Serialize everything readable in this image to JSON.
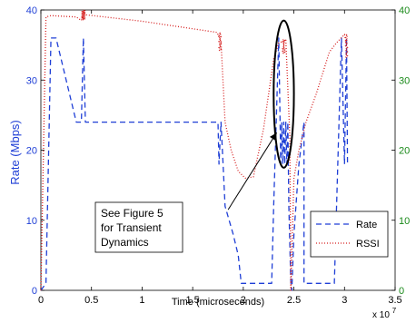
{
  "chart_data": {
    "type": "line",
    "xlabel": "Time (microseconds)",
    "x_multiplier": "x 10",
    "x_exponent": "7",
    "ylabel_left": "Rate (Mbps)",
    "xlim": [
      0,
      3.5
    ],
    "ylim_left": [
      0,
      40
    ],
    "ylim_right": [
      0,
      40
    ],
    "x_ticks": [
      "0",
      "0.5",
      "1",
      "1.5",
      "2",
      "2.5",
      "3",
      "3.5"
    ],
    "y_ticks_left": [
      "0",
      "10",
      "20",
      "30",
      "40"
    ],
    "y_ticks_right": [
      "0",
      "10",
      "20",
      "30",
      "40"
    ],
    "grid": false,
    "legend_position": "lower-right",
    "colors": {
      "rate": "#1f3fd6",
      "rssi": "#d62020",
      "left_axis": "#1f3fd6",
      "right_axis": "#1a8a1a"
    },
    "series": [
      {
        "name": "Rate",
        "axis": "left",
        "style": "dashed",
        "points": [
          [
            0.0,
            0
          ],
          [
            0.05,
            1
          ],
          [
            0.1,
            36
          ],
          [
            0.15,
            36
          ],
          [
            0.35,
            24
          ],
          [
            0.4,
            24
          ],
          [
            0.42,
            36
          ],
          [
            0.44,
            24
          ],
          [
            1.75,
            24
          ],
          [
            1.76,
            18
          ],
          [
            1.78,
            24
          ],
          [
            1.8,
            18
          ],
          [
            1.82,
            12
          ],
          [
            1.9,
            8
          ],
          [
            1.95,
            5
          ],
          [
            1.98,
            1
          ],
          [
            2.28,
            1
          ],
          [
            2.3,
            12
          ],
          [
            2.35,
            36
          ],
          [
            2.37,
            18
          ],
          [
            2.38,
            24
          ],
          [
            2.39,
            18
          ],
          [
            2.4,
            24
          ],
          [
            2.41,
            18
          ],
          [
            2.42,
            24
          ],
          [
            2.43,
            18
          ],
          [
            2.44,
            24
          ],
          [
            2.45,
            12
          ],
          [
            2.47,
            1
          ],
          [
            2.48,
            0
          ],
          [
            2.5,
            8
          ],
          [
            2.55,
            18
          ],
          [
            2.6,
            24
          ],
          [
            2.6,
            1
          ],
          [
            2.9,
            1
          ],
          [
            2.97,
            36
          ],
          [
            3.0,
            18
          ],
          [
            3.02,
            36
          ],
          [
            3.03,
            18
          ]
        ]
      },
      {
        "name": "RSSI",
        "axis": "left",
        "style": "dotted",
        "points": [
          [
            0.0,
            0
          ],
          [
            0.05,
            39
          ],
          [
            0.1,
            39.2
          ],
          [
            0.35,
            39
          ],
          [
            0.4,
            38.5
          ],
          [
            0.42,
            39.8
          ],
          [
            0.45,
            39.3
          ],
          [
            1.0,
            38.4
          ],
          [
            1.74,
            36.8
          ],
          [
            1.78,
            35.5
          ],
          [
            1.82,
            24
          ],
          [
            1.88,
            20
          ],
          [
            1.95,
            17
          ],
          [
            2.02,
            16
          ],
          [
            2.1,
            16.2
          ],
          [
            2.2,
            23
          ],
          [
            2.3,
            33
          ],
          [
            2.35,
            35.3
          ],
          [
            2.42,
            35.7
          ],
          [
            2.46,
            22
          ],
          [
            2.47,
            0
          ],
          [
            2.5,
            16
          ],
          [
            2.55,
            20
          ],
          [
            2.62,
            24
          ],
          [
            2.72,
            28
          ],
          [
            2.85,
            34
          ],
          [
            2.92,
            35.3
          ],
          [
            3.0,
            36.5
          ],
          [
            3.02,
            35
          ]
        ],
        "jitter_clusters": [
          {
            "x": 0.42,
            "y_min": 38.6,
            "y_max": 40
          },
          {
            "x": 1.77,
            "y_min": 34.2,
            "y_max": 36.8
          },
          {
            "x": 2.4,
            "y_min": 33.8,
            "y_max": 35.8
          },
          {
            "x": 3.02,
            "y_min": 33.2,
            "y_max": 36.6
          }
        ]
      }
    ],
    "annotation": {
      "lines": [
        "See Figure 5",
        "for Transient",
        "Dynamics"
      ],
      "highlight_center": [
        2.4,
        28
      ],
      "highlight_radius": [
        0.1,
        10.5
      ],
      "arrow_from": [
        1.85,
        11.5
      ],
      "arrow_to": [
        2.33,
        22.5
      ]
    }
  }
}
